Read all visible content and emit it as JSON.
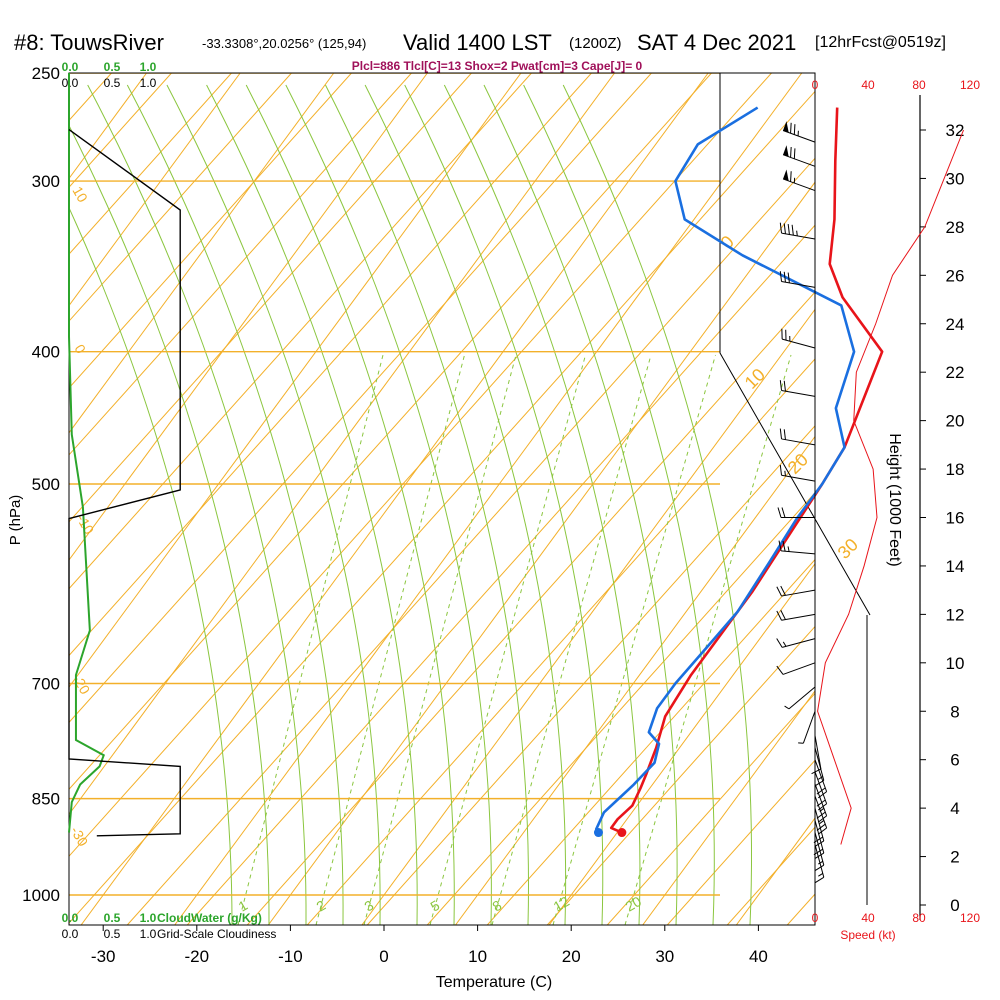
{
  "header": {
    "station": "#8: TouwsRiver",
    "coords": "-33.3308°,20.0256° (125,94)",
    "valid": "Valid 1400 LST",
    "zulu": "(1200Z)",
    "date": "SAT 4 Dec 2021",
    "forecast": "[12hrFcst@0519z]",
    "indices": "Plcl=886 Tlcl[C]=13 Shox=2 Pwat[cm]=3 Cape[J]= 0"
  },
  "chart_data": {
    "type": "line",
    "xlabel": "Temperature (C)",
    "ylabel": "P (hPa)",
    "y2label": "Height (1000 Feet)",
    "x_ticks": [
      -30,
      -20,
      -10,
      0,
      10,
      20,
      30,
      40
    ],
    "p_ticks": [
      250,
      300,
      400,
      500,
      700,
      850,
      1000
    ],
    "p_range": [
      250,
      1000
    ],
    "t_range": [
      -33,
      46
    ],
    "height_ticks": [
      0,
      2,
      4,
      6,
      8,
      10,
      12,
      14,
      16,
      18,
      20,
      22,
      24,
      26,
      28,
      30,
      32
    ],
    "speed_ticks": [
      0,
      40,
      80,
      120
    ],
    "speed_label": "Speed (kt)",
    "cloud_ticks": [
      "0.0",
      "0.5",
      "1.0"
    ],
    "cloudwater_label": "CloudWater (g/Kg)",
    "cloudiness_label": "Grid-Scale Cloudiness",
    "isotherm_labels": [
      "-10",
      "0",
      "10",
      "20",
      "30"
    ],
    "mixing_ratio_labels": [
      "1",
      "2",
      "3",
      "5",
      "8",
      "12",
      "20"
    ],
    "theta_labels": [
      "10",
      "0",
      "-10",
      "-20",
      "-30"
    ],
    "series": [
      {
        "name": "Temperature",
        "color": "#e8141a",
        "p": [
          900,
          893,
          880,
          860,
          835,
          815,
          780,
          740,
          690,
          600,
          500,
          470,
          400,
          365,
          345,
          320,
          290,
          265
        ],
        "t": [
          20.5,
          19.0,
          19.0,
          19.5,
          19.0,
          18.5,
          17.5,
          16.0,
          15.5,
          15.5,
          14.5,
          14.0,
          10.5,
          2.0,
          -2.0,
          -5.0,
          -9.5,
          -13.5
        ]
      },
      {
        "name": "Dewpoint",
        "color": "#1a6fe0",
        "p": [
          900,
          895,
          870,
          850,
          830,
          800,
          775,
          760,
          730,
          700,
          660,
          620,
          570,
          530,
          500,
          470,
          440,
          400,
          370,
          340,
          320,
          300,
          282,
          265
        ],
        "t": [
          18.0,
          17.5,
          17.0,
          17.5,
          18.0,
          18.5,
          17.5,
          15.5,
          14.5,
          14.5,
          15.0,
          15.5,
          15.0,
          14.5,
          14.5,
          14.0,
          10.0,
          7.5,
          2.5,
          -12.0,
          -21.0,
          -25.0,
          -25.5,
          -22.0
        ]
      }
    ],
    "wind_speed_profile": {
      "name": "Wind speed",
      "color": "#e8141a",
      "height_kft": [
        2.5,
        4,
        6,
        8,
        10,
        12,
        14,
        16,
        18,
        20,
        22,
        24,
        26,
        28,
        30,
        32
      ],
      "speed_kt": [
        20,
        28,
        15,
        2,
        8,
        26,
        38,
        48,
        45,
        30,
        32,
        47,
        60,
        85,
        100,
        115
      ]
    },
    "cloudwater_profile": {
      "name": "CloudWater",
      "color": "#2ca52c",
      "p": [
        250,
        390,
        460,
        520,
        640,
        690,
        770,
        790,
        805,
        830,
        855,
        900
      ],
      "v": [
        0.0,
        0.0,
        0.02,
        0.1,
        0.15,
        0.05,
        0.05,
        0.25,
        0.22,
        0.08,
        0.02,
        0.0
      ]
    },
    "cloudiness_profile": {
      "name": "Grid-Scale Cloudiness",
      "color": "#000000",
      "p": [
        275,
        315,
        315,
        505,
        530,
        662,
        690,
        795,
        805,
        900,
        902,
        905
      ],
      "v": [
        0.0,
        0.8,
        0.8,
        0.8,
        0.0,
        0.0,
        0.0,
        0.0,
        0.8,
        0.8,
        0.8,
        0.2
      ]
    },
    "wind_barbs": [
      {
        "h": 31.5,
        "dir": 290,
        "spd": 75
      },
      {
        "h": 30.5,
        "dir": 290,
        "spd": 70
      },
      {
        "h": 29.5,
        "dir": 290,
        "spd": 65
      },
      {
        "h": 27.5,
        "dir": 280,
        "spd": 45
      },
      {
        "h": 25.5,
        "dir": 280,
        "spd": 30
      },
      {
        "h": 23.0,
        "dir": 285,
        "spd": 25
      },
      {
        "h": 21.0,
        "dir": 280,
        "spd": 20
      },
      {
        "h": 19.0,
        "dir": 280,
        "spd": 20
      },
      {
        "h": 17.5,
        "dir": 280,
        "spd": 15
      },
      {
        "h": 16.0,
        "dir": 270,
        "spd": 20
      },
      {
        "h": 14.5,
        "dir": 275,
        "spd": 25
      },
      {
        "h": 13.0,
        "dir": 260,
        "spd": 20
      },
      {
        "h": 12.0,
        "dir": 260,
        "spd": 20
      },
      {
        "h": 11.0,
        "dir": 255,
        "spd": 15
      },
      {
        "h": 10.0,
        "dir": 250,
        "spd": 10
      },
      {
        "h": 9.0,
        "dir": 230,
        "spd": 8
      },
      {
        "h": 8.0,
        "dir": 200,
        "spd": 8
      },
      {
        "h": 7.0,
        "dir": 170,
        "spd": 10
      },
      {
        "h": 6.5,
        "dir": 165,
        "spd": 15
      },
      {
        "h": 6.0,
        "dir": 160,
        "spd": 20
      },
      {
        "h": 5.5,
        "dir": 160,
        "spd": 20
      },
      {
        "h": 5.0,
        "dir": 160,
        "spd": 25
      },
      {
        "h": 4.5,
        "dir": 160,
        "spd": 25
      },
      {
        "h": 4.0,
        "dir": 165,
        "spd": 20
      },
      {
        "h": 3.5,
        "dir": 165,
        "spd": 20
      },
      {
        "h": 3.0,
        "dir": 165,
        "spd": 15
      },
      {
        "h": 2.5,
        "dir": 165,
        "spd": 15
      }
    ]
  }
}
